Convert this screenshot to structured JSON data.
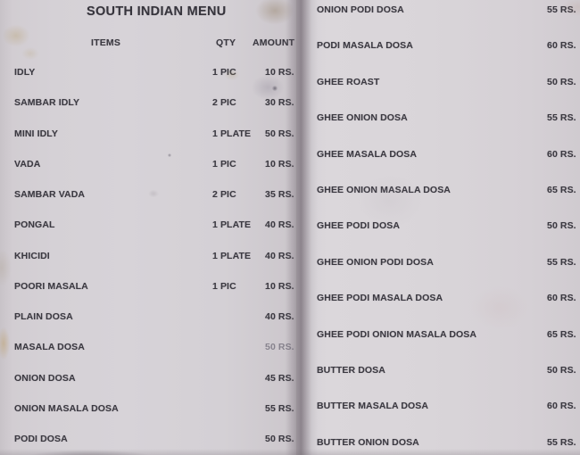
{
  "colors": {
    "paper": "#d5d1d5",
    "ink": "#3b3941",
    "seam_shadow": "#5c535c",
    "stain_yellow": "#b09660"
  },
  "menu": {
    "title": "SOUTH INDIAN MENU",
    "columns": {
      "items": "ITEMS",
      "qty": "QTY",
      "amount": "AMOUNT"
    },
    "left_rows": [
      {
        "item": "IDLY",
        "qty": "1 PIC",
        "amount": "10 RS."
      },
      {
        "item": "SAMBAR IDLY",
        "qty": "2 PIC",
        "amount": "30 RS."
      },
      {
        "item": "MINI IDLY",
        "qty": "1 PLATE",
        "amount": "50 RS."
      },
      {
        "item": "VADA",
        "qty": "1 PIC",
        "amount": "10 RS."
      },
      {
        "item": "SAMBAR VADA",
        "qty": "2 PIC",
        "amount": "35 RS."
      },
      {
        "item": "PONGAL",
        "qty": "1 PLATE",
        "amount": "40 RS."
      },
      {
        "item": "KHICIDI",
        "qty": "1 PLATE",
        "amount": "40 RS."
      },
      {
        "item": "POORI MASALA",
        "qty": "1 PIC",
        "amount": "10 RS."
      },
      {
        "item": "PLAIN DOSA",
        "qty": "",
        "amount": "40 RS."
      },
      {
        "item": "MASALA DOSA",
        "qty": "",
        "amount": "50 RS.",
        "dim": true
      },
      {
        "item": "ONION DOSA",
        "qty": "",
        "amount": "45 RS."
      },
      {
        "item": "ONION MASALA DOSA",
        "qty": "",
        "amount": "55 RS."
      },
      {
        "item": "PODI DOSA",
        "qty": "",
        "amount": "50 RS."
      }
    ],
    "right_rows": [
      {
        "item": "ONION PODI DOSA",
        "amount": "55 RS."
      },
      {
        "item": "PODI MASALA DOSA",
        "amount": "60 RS."
      },
      {
        "item": "GHEE ROAST",
        "amount": "50 RS."
      },
      {
        "item": "GHEE ONION DOSA",
        "amount": "55 RS."
      },
      {
        "item": "GHEE MASALA DOSA",
        "amount": "60 RS."
      },
      {
        "item": "GHEE ONION MASALA DOSA",
        "amount": "65 RS."
      },
      {
        "item": "GHEE PODI DOSA",
        "amount": "50 RS."
      },
      {
        "item": "GHEE ONION PODI DOSA",
        "amount": "55 RS."
      },
      {
        "item": "GHEE PODI MASALA DOSA",
        "amount": "60 RS."
      },
      {
        "item": "GHEE PODI ONION MASALA DOSA",
        "amount": "65 RS."
      },
      {
        "item": "BUTTER DOSA",
        "amount": "50 RS."
      },
      {
        "item": "BUTTER MASALA DOSA",
        "amount": "60 RS."
      },
      {
        "item": "BUTTER ONION DOSA",
        "amount": "55 RS."
      }
    ]
  }
}
